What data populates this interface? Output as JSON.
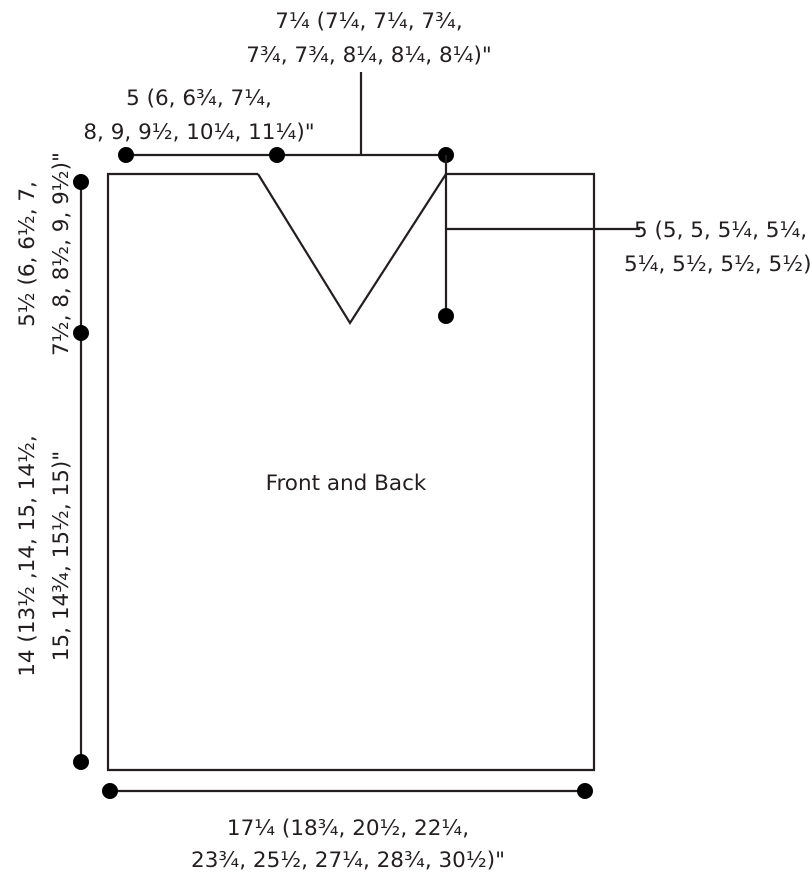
{
  "diagram": {
    "title": "Front and Back",
    "neck_width": {
      "line1": "7¼ (7¼, 7¼, 7¾,",
      "line2": "7¾, 7¾, 8¼, 8¼, 8¼)\""
    },
    "shoulder_width": {
      "line1": "5 (6, 6¾, 7¼,",
      "line2": "8, 9, 9½, 10¼, 11¼)\""
    },
    "neck_depth": {
      "line1": "5 (5, 5, 5¼, 5¼,",
      "line2": "5¼, 5½, 5½, 5½)\""
    },
    "armhole_depth": {
      "line1": "5½ (6, 6½, 7,",
      "line2": "7½, 8, 8½, 9, 9½)\""
    },
    "body_length": {
      "line1": "14 (13½ ,14, 15, 14½,",
      "line2": "15, 14¾, 15½, 15)\""
    },
    "width": {
      "line1": "17¼ (18¾, 20½, 22¼,",
      "line2": "23¾, 25½, 27¼, 28¾, 30½)\""
    },
    "colors": {
      "ink": "#231f20",
      "dot": "#000000",
      "background": "#ffffff"
    }
  }
}
